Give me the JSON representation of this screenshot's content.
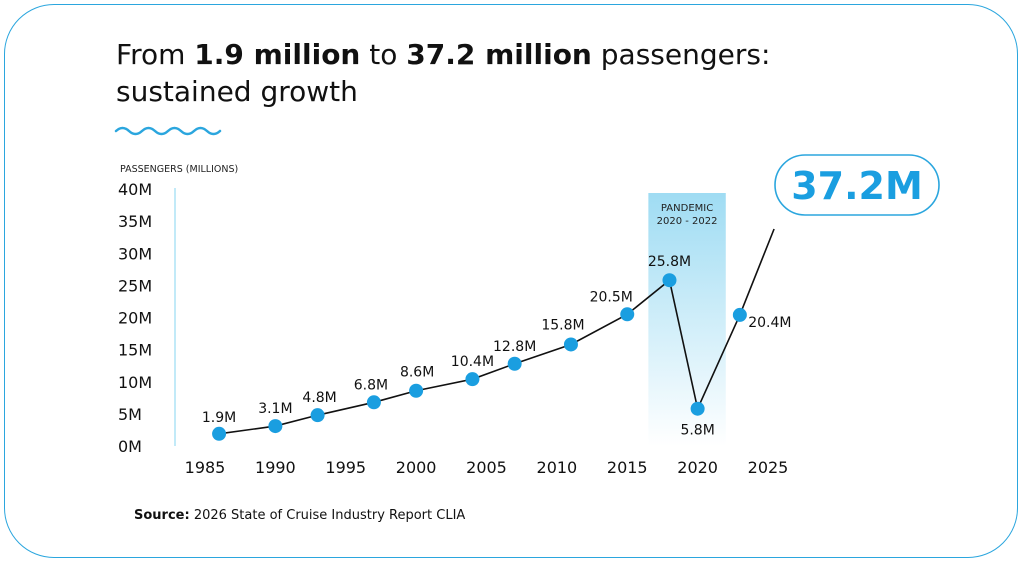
{
  "title": {
    "part1": "From ",
    "bold1": "1.9 million",
    "part2": " to ",
    "bold2": "37.2 million",
    "part3": " passengers:",
    "line2": "sustained growth"
  },
  "source": {
    "label": "Source:",
    "text": " 2026 State of Cruise Industry Report CLIA"
  },
  "colors": {
    "accent": "#2ba6de",
    "point": "#1a9ee0",
    "band_top": "#9fdcf3",
    "band_bottom": "#ffffff"
  },
  "chart_data": {
    "type": "line",
    "ylabel": "PASSENGERS (MILLIONS)",
    "ylim": [
      0,
      40
    ],
    "xlim": [
      1985,
      2025
    ],
    "y_ticks": [
      "0M",
      "5M",
      "10M",
      "15M",
      "20M",
      "25M",
      "30M",
      "35M",
      "40M"
    ],
    "y_tick_values": [
      0,
      5,
      10,
      15,
      20,
      25,
      30,
      35,
      40
    ],
    "x_ticks": [
      "1985",
      "1990",
      "1995",
      "2000",
      "2005",
      "2010",
      "2015",
      "2020",
      "2025"
    ],
    "x_tick_values": [
      1985,
      1990,
      1995,
      2000,
      2005,
      2010,
      2015,
      2020,
      2025
    ],
    "grid": false,
    "series": [
      {
        "x": [
          1986,
          1990,
          1993,
          1997,
          2000,
          2004,
          2007,
          2011,
          2015,
          2018,
          2020,
          2023,
          2026
        ],
        "values": [
          1.9,
          3.1,
          4.8,
          6.8,
          8.6,
          10.4,
          12.8,
          15.8,
          20.5,
          25.8,
          5.8,
          20.4,
          37.2
        ],
        "labels": [
          "1.9M",
          "3.1M",
          "4.8M",
          "6.8M",
          "8.6M",
          "10.4M",
          "12.8M",
          "15.8M",
          "20.5M",
          "25.8M",
          "5.8M",
          "20.4M",
          "37.2M"
        ]
      }
    ],
    "annotation": {
      "title": "PANDEMIC",
      "range": "2020 - 2022",
      "x_range": [
        2016.5,
        2022
      ]
    }
  }
}
